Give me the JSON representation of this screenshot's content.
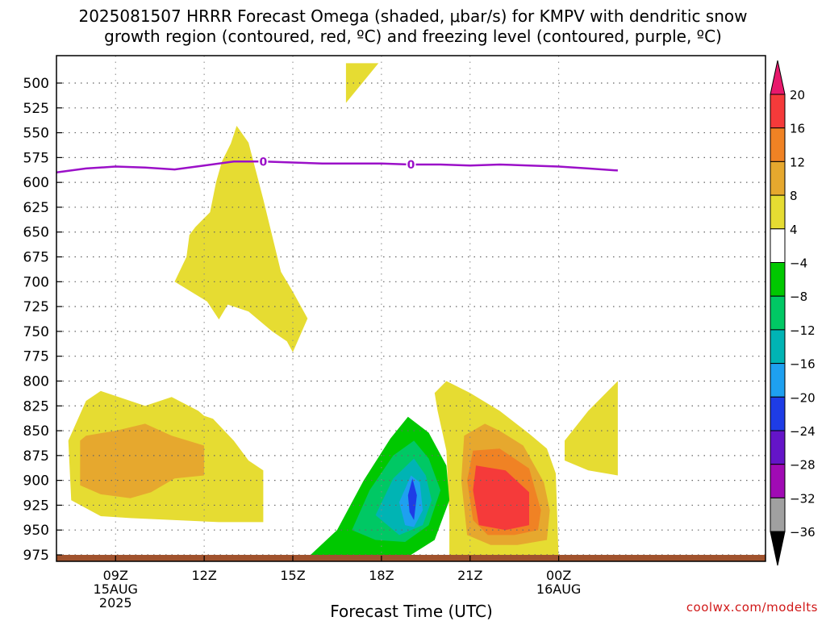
{
  "title": {
    "line1": "2025081507 HRRR Forecast Omega (shaded, μbar/s) for KMPV with dendritic snow",
    "line2": "growth region (contoured, red, ºC) and freezing level (contoured, purple, ºC)"
  },
  "credit": "coolwx.com/modelts",
  "chart_data": {
    "type": "heatmap",
    "xlabel": "Forecast Time (UTC)",
    "ylabel": "",
    "x_unit": "hours from 2025-08-15 07Z",
    "xlim": [
      7,
      31
    ],
    "y_ticks": [
      500,
      525,
      550,
      575,
      600,
      625,
      650,
      675,
      700,
      725,
      750,
      775,
      800,
      825,
      850,
      875,
      900,
      925,
      950,
      975
    ],
    "ylim": [
      480,
      985
    ],
    "x_ticks": [
      {
        "x": 9,
        "lines": [
          "09Z",
          "15AUG",
          "2025"
        ]
      },
      {
        "x": 12,
        "lines": [
          "12Z"
        ]
      },
      {
        "x": 15,
        "lines": [
          "15Z"
        ]
      },
      {
        "x": 18,
        "lines": [
          "18Z"
        ]
      },
      {
        "x": 21,
        "lines": [
          "21Z"
        ]
      },
      {
        "x": 24,
        "lines": [
          "00Z",
          "16AUG"
        ]
      }
    ],
    "grid": true,
    "colorbar": {
      "levels": [
        "20",
        "16",
        "12",
        "8",
        "4",
        "−4",
        "−8",
        "−12",
        "−16",
        "−20",
        "−24",
        "−28",
        "−32",
        "−36"
      ],
      "colors": [
        "#e8186c",
        "#f53a3a",
        "#f08224",
        "#e6a82e",
        "#e6dc32",
        "#ffffff",
        "#00c800",
        "#00c864",
        "#00b4b4",
        "#1ea0f0",
        "#1e3ce6",
        "#6414c8",
        "#a00ab4",
        "#a0a0a0",
        "#000000"
      ]
    },
    "freezing_level": {
      "label": "0",
      "label_x": [
        14,
        19
      ],
      "color": "#9b10c8",
      "points": [
        [
          7,
          590
        ],
        [
          8,
          586
        ],
        [
          9,
          584
        ],
        [
          10,
          585
        ],
        [
          11,
          587
        ],
        [
          12,
          583
        ],
        [
          13,
          579
        ],
        [
          14,
          579
        ],
        [
          15,
          580
        ],
        [
          16,
          581
        ],
        [
          17,
          581
        ],
        [
          18,
          581
        ],
        [
          19,
          582
        ],
        [
          20,
          582
        ],
        [
          21,
          583
        ],
        [
          22,
          582
        ],
        [
          23,
          583
        ],
        [
          24,
          584
        ],
        [
          25,
          586
        ],
        [
          26,
          588
        ]
      ]
    },
    "omega_regions": [
      {
        "level": "4 to 8",
        "color": "#e6dc32",
        "points": [
          [
            16.8,
            480
          ],
          [
            17.9,
            480
          ],
          [
            16.8,
            520
          ]
        ]
      },
      {
        "level": "4 to 8",
        "color": "#e6dc32",
        "points": [
          [
            12.6,
            579
          ],
          [
            12.9,
            561
          ],
          [
            13.1,
            543
          ],
          [
            13.5,
            560
          ],
          [
            14.0,
            617
          ],
          [
            14.6,
            690
          ],
          [
            15.0,
            710
          ],
          [
            15.5,
            737
          ],
          [
            15.0,
            771
          ],
          [
            14.8,
            760
          ],
          [
            14.3,
            750
          ],
          [
            13.5,
            730
          ],
          [
            12.8,
            723
          ],
          [
            12.5,
            738
          ],
          [
            12.1,
            720
          ],
          [
            11.0,
            700
          ],
          [
            11.4,
            675
          ],
          [
            11.5,
            653
          ],
          [
            11.7,
            645
          ],
          [
            12.2,
            630
          ],
          [
            12.4,
            600
          ]
        ]
      },
      {
        "level": "4 to 8",
        "color": "#e6dc32",
        "points": [
          [
            7.4,
            860
          ],
          [
            8.0,
            820
          ],
          [
            8.5,
            810
          ],
          [
            9.5,
            820
          ],
          [
            10.0,
            825
          ],
          [
            10.9,
            816
          ],
          [
            11.8,
            830
          ],
          [
            12.0,
            835
          ],
          [
            12.3,
            838
          ],
          [
            13.0,
            860
          ],
          [
            13.5,
            880
          ],
          [
            14.0,
            890
          ],
          [
            14.0,
            942
          ],
          [
            12.5,
            942
          ],
          [
            11.0,
            940
          ],
          [
            9.5,
            938
          ],
          [
            8.5,
            936
          ],
          [
            7.5,
            920
          ]
        ]
      },
      {
        "level": "8 to 12",
        "color": "#e6a82e",
        "points": [
          [
            7.8,
            860
          ],
          [
            8.0,
            855
          ],
          [
            9.0,
            850
          ],
          [
            10.0,
            843
          ],
          [
            10.9,
            855
          ],
          [
            12.0,
            865
          ],
          [
            12.0,
            895
          ],
          [
            11.0,
            898
          ],
          [
            10.2,
            912
          ],
          [
            9.5,
            918
          ],
          [
            8.5,
            914
          ],
          [
            7.8,
            905
          ]
        ]
      },
      {
        "level": "4 to 8",
        "color": "#e6dc32",
        "points": [
          [
            19.8,
            812
          ],
          [
            20.2,
            800
          ],
          [
            21.0,
            812
          ],
          [
            22.0,
            830
          ],
          [
            23.0,
            853
          ],
          [
            23.6,
            868
          ],
          [
            23.9,
            893
          ],
          [
            24.0,
            980
          ],
          [
            22.6,
            980
          ],
          [
            21.5,
            975
          ],
          [
            20.3,
            980
          ],
          [
            20.3,
            935
          ],
          [
            20.2,
            870
          ],
          [
            19.9,
            830
          ]
        ]
      },
      {
        "level": "8 to 12",
        "color": "#e6a82e",
        "points": [
          [
            20.8,
            855
          ],
          [
            21.5,
            843
          ],
          [
            22.0,
            850
          ],
          [
            22.8,
            865
          ],
          [
            23.5,
            902
          ],
          [
            23.7,
            930
          ],
          [
            23.6,
            960
          ],
          [
            22.6,
            965
          ],
          [
            21.7,
            965
          ],
          [
            20.9,
            955
          ],
          [
            20.7,
            900
          ]
        ]
      },
      {
        "level": "12 to 16",
        "color": "#f08224",
        "points": [
          [
            21.1,
            870
          ],
          [
            22.0,
            868
          ],
          [
            23.0,
            888
          ],
          [
            23.4,
            930
          ],
          [
            23.3,
            950
          ],
          [
            22.5,
            955
          ],
          [
            21.6,
            955
          ],
          [
            21.1,
            940
          ],
          [
            20.9,
            900
          ]
        ]
      },
      {
        "level": "16 to 20",
        "color": "#f53a3a",
        "points": [
          [
            21.2,
            885
          ],
          [
            22.2,
            890
          ],
          [
            23.0,
            912
          ],
          [
            23.0,
            945
          ],
          [
            22.2,
            950
          ],
          [
            21.3,
            945
          ],
          [
            21.1,
            910
          ]
        ]
      },
      {
        "level": "4 to 8",
        "color": "#e6dc32",
        "points": [
          [
            24.2,
            860
          ],
          [
            25.0,
            830
          ],
          [
            26.0,
            800
          ],
          [
            26.0,
            895
          ],
          [
            25.0,
            890
          ],
          [
            24.2,
            880
          ]
        ]
      },
      {
        "level": "-4 to -8",
        "color": "#00c800",
        "points": [
          [
            15.6,
            975
          ],
          [
            16.5,
            950
          ],
          [
            17.4,
            900
          ],
          [
            18.3,
            858
          ],
          [
            18.9,
            836
          ],
          [
            19.6,
            852
          ],
          [
            20.2,
            885
          ],
          [
            20.3,
            920
          ],
          [
            19.8,
            960
          ],
          [
            19.0,
            975
          ],
          [
            18.0,
            983
          ],
          [
            17.0,
            985
          ],
          [
            16.0,
            985
          ]
        ]
      },
      {
        "level": "-8 to -12",
        "color": "#00c864",
        "points": [
          [
            17.0,
            950
          ],
          [
            17.6,
            910
          ],
          [
            18.4,
            875
          ],
          [
            19.1,
            860
          ],
          [
            19.6,
            878
          ],
          [
            20.0,
            910
          ],
          [
            19.6,
            945
          ],
          [
            18.8,
            962
          ],
          [
            17.8,
            960
          ]
        ]
      },
      {
        "level": "-12 to -16",
        "color": "#00b4b4",
        "points": [
          [
            17.8,
            935
          ],
          [
            18.4,
            898
          ],
          [
            19.1,
            878
          ],
          [
            19.5,
            895
          ],
          [
            19.7,
            920
          ],
          [
            19.4,
            945
          ],
          [
            18.6,
            955
          ]
        ]
      },
      {
        "level": "-16 to -20",
        "color": "#1ea0f0",
        "points": [
          [
            18.6,
            922
          ],
          [
            19.0,
            895
          ],
          [
            19.3,
            902
          ],
          [
            19.4,
            930
          ],
          [
            19.1,
            947
          ],
          [
            18.8,
            945
          ]
        ]
      },
      {
        "level": "-20 to -24",
        "color": "#1e3ce6",
        "points": [
          [
            18.9,
            915
          ],
          [
            19.05,
            898
          ],
          [
            19.2,
            915
          ],
          [
            19.1,
            940
          ],
          [
            18.95,
            932
          ]
        ]
      }
    ]
  }
}
